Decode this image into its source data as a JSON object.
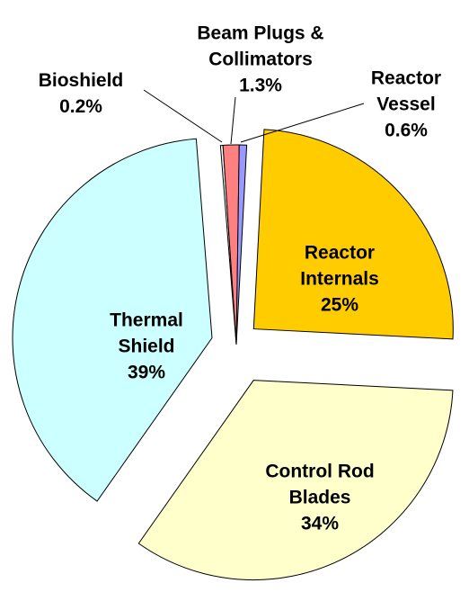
{
  "chart_data": {
    "type": "pie",
    "categories": [
      "Reactor Internals",
      "Control Rod Blades",
      "Thermal Shield",
      "Bioshield",
      "Beam Plugs & Collimators",
      "Reactor Vessel"
    ],
    "values": [
      25,
      34,
      39,
      0.2,
      1.3,
      0.6
    ],
    "value_labels": [
      "25%",
      "34%",
      "39%",
      "0.2%",
      "1.3%",
      "0.6%"
    ],
    "colors": [
      "#ffcc00",
      "#ffffcc",
      "#ccffff",
      "#ffffff",
      "#ff8080",
      "#9999ff"
    ]
  }
}
